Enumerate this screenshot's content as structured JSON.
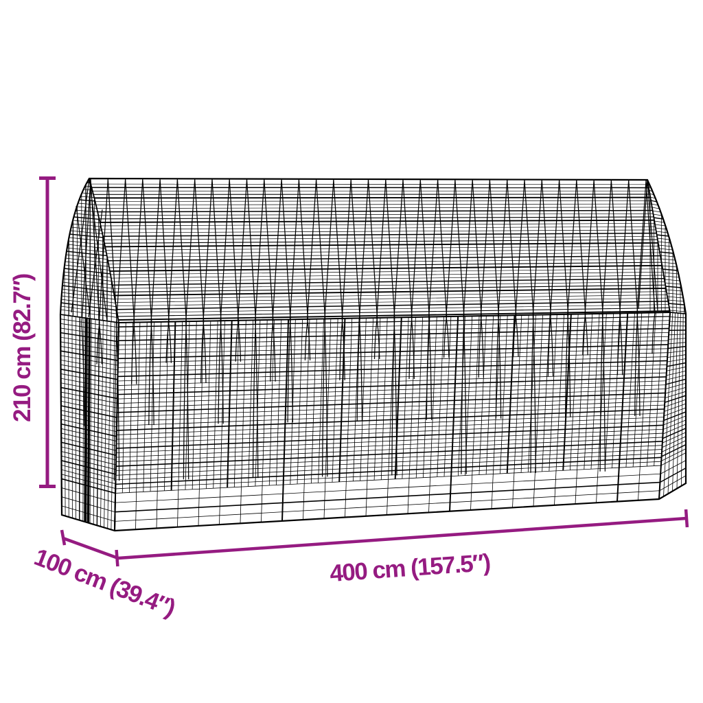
{
  "figure": {
    "type": "product-dimension-diagram",
    "subject": "wire mesh gabion structure with pointed-arch roof, drawn as black wireframe"
  },
  "dimensions": {
    "height": {
      "label": "210 cm (82.7″)"
    },
    "depth": {
      "label": "100 cm (39.4″)"
    },
    "width": {
      "label": "400 cm (157.5″)"
    }
  },
  "colors": {
    "dimension_accent": "#951B81",
    "wire": "#000000",
    "background": "#FFFFFF"
  }
}
